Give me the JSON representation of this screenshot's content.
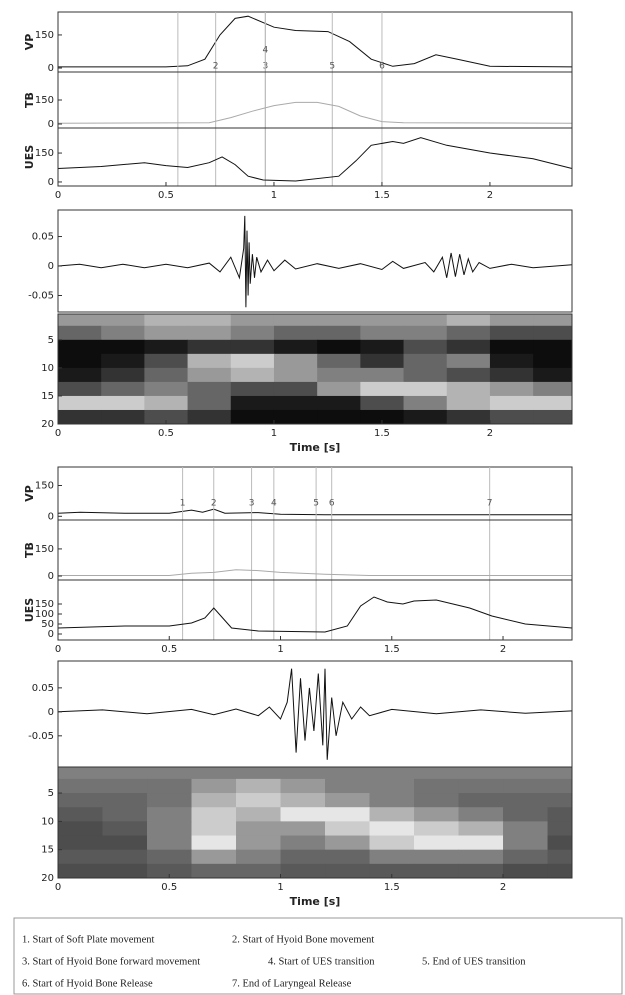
{
  "chart_data": [
    {
      "type": "line",
      "ylabel": "VP",
      "x": [
        0,
        0.5,
        0.6,
        0.68,
        0.75,
        0.82,
        0.88,
        1.0,
        1.1,
        1.25,
        1.35,
        1.45,
        1.55,
        1.65,
        1.75,
        1.85,
        2.0,
        2.38
      ],
      "values": [
        5,
        5,
        10,
        40,
        150,
        225,
        235,
        185,
        170,
        165,
        120,
        40,
        8,
        20,
        60,
        40,
        8,
        5
      ],
      "color": "#111111",
      "xlim": [
        0,
        2.38
      ],
      "ylim": [
        -18,
        254
      ],
      "yticks": [
        0,
        150
      ],
      "markers": {
        "x": [
          0.555,
          0.73,
          0.96,
          0.96,
          1.27,
          1.5
        ],
        "labels": [
          null,
          "2",
          "3",
          "4",
          "5",
          "6"
        ]
      }
    },
    {
      "type": "line",
      "ylabel": "TB",
      "x": [
        0,
        0.7,
        0.8,
        0.9,
        1.0,
        1.1,
        1.2,
        1.3,
        1.4,
        1.5,
        1.6,
        2.38
      ],
      "values": [
        5,
        8,
        40,
        80,
        115,
        135,
        135,
        110,
        50,
        15,
        8,
        5
      ],
      "color": "#aaaaaa",
      "xlim": [
        0,
        2.38
      ],
      "ylim": [
        -25,
        325
      ],
      "yticks": [
        0,
        150
      ]
    },
    {
      "type": "line",
      "ylabel": "UES",
      "x": [
        0,
        0.2,
        0.4,
        0.5,
        0.6,
        0.7,
        0.76,
        0.82,
        0.88,
        0.95,
        1.1,
        1.3,
        1.38,
        1.45,
        1.55,
        1.6,
        1.68,
        1.8,
        2.0,
        2.2,
        2.38
      ],
      "values": [
        70,
        80,
        100,
        85,
        75,
        100,
        130,
        90,
        30,
        10,
        5,
        30,
        110,
        190,
        210,
        200,
        230,
        190,
        150,
        120,
        70
      ],
      "color": "#111111",
      "xlim": [
        0,
        2.38
      ],
      "ylim": [
        -21,
        280
      ],
      "yticks": [
        0,
        150
      ],
      "xticks": [
        0,
        0.5,
        1,
        1.5,
        2
      ]
    },
    {
      "type": "line",
      "x": [
        0,
        0.1,
        0.2,
        0.3,
        0.4,
        0.5,
        0.6,
        0.7,
        0.75,
        0.8,
        0.84,
        0.86,
        0.865,
        0.87,
        0.875,
        0.88,
        0.885,
        0.89,
        0.9,
        0.91,
        0.92,
        0.94,
        0.97,
        1.0,
        1.05,
        1.1,
        1.2,
        1.3,
        1.4,
        1.5,
        1.55,
        1.6,
        1.7,
        1.74,
        1.78,
        1.8,
        1.82,
        1.84,
        1.86,
        1.88,
        1.9,
        1.92,
        1.95,
        2.0,
        2.1,
        2.2,
        2.38
      ],
      "values": [
        0,
        0.003,
        -0.003,
        0.003,
        -0.003,
        0.003,
        -0.003,
        0.005,
        -0.01,
        0.015,
        -0.02,
        0.03,
        0.085,
        -0.07,
        0.06,
        -0.05,
        0.04,
        -0.03,
        0.02,
        -0.02,
        0.015,
        -0.01,
        0.01,
        -0.008,
        0.01,
        -0.005,
        0.004,
        -0.004,
        0.004,
        -0.006,
        0.008,
        -0.004,
        0.006,
        -0.01,
        0.015,
        -0.02,
        0.022,
        -0.018,
        0.02,
        -0.015,
        0.012,
        -0.01,
        0.006,
        -0.004,
        0.003,
        -0.003,
        0.002
      ],
      "color": "#111111",
      "xlim": [
        0,
        2.38
      ],
      "ylim": [
        -0.078,
        0.095
      ],
      "yticks": [
        -0.05,
        0,
        0.05
      ]
    },
    {
      "type": "heatmap",
      "xlabel": "Time [s]",
      "colormap": "gray",
      "y_inverted": true,
      "xbins": [
        0,
        0.2,
        0.4,
        0.6,
        0.8,
        1.0,
        1.2,
        1.4,
        1.6,
        1.8,
        2.0,
        2.2,
        2.38
      ],
      "ybins": [
        0.4,
        2.5,
        5,
        7.5,
        10,
        12.5,
        15,
        17.5,
        20
      ],
      "values": [
        [
          0.6,
          0.6,
          0.7,
          0.7,
          0.6,
          0.6,
          0.6,
          0.6,
          0.6,
          0.7,
          0.6,
          0.6
        ],
        [
          0.4,
          0.5,
          0.6,
          0.6,
          0.5,
          0.4,
          0.4,
          0.5,
          0.5,
          0.4,
          0.3,
          0.3
        ],
        [
          0.05,
          0.05,
          0.1,
          0.2,
          0.2,
          0.1,
          0.05,
          0.1,
          0.3,
          0.2,
          0.05,
          0.05
        ],
        [
          0.05,
          0.1,
          0.3,
          0.7,
          0.8,
          0.6,
          0.4,
          0.2,
          0.4,
          0.5,
          0.1,
          0.05
        ],
        [
          0.1,
          0.2,
          0.4,
          0.6,
          0.7,
          0.6,
          0.5,
          0.5,
          0.4,
          0.3,
          0.2,
          0.1
        ],
        [
          0.3,
          0.4,
          0.5,
          0.4,
          0.3,
          0.3,
          0.6,
          0.8,
          0.8,
          0.7,
          0.6,
          0.5
        ],
        [
          0.8,
          0.8,
          0.7,
          0.4,
          0.1,
          0.1,
          0.1,
          0.3,
          0.5,
          0.7,
          0.8,
          0.8
        ],
        [
          0.2,
          0.2,
          0.3,
          0.2,
          0.05,
          0.05,
          0.05,
          0.05,
          0.1,
          0.2,
          0.3,
          0.3
        ]
      ],
      "xlim": [
        0,
        2.38
      ],
      "ylim": [
        0.4,
        20
      ],
      "yticks": [
        5,
        10,
        15,
        20
      ],
      "xticks": [
        0,
        0.5,
        1,
        1.5,
        2
      ]
    },
    {
      "type": "line",
      "ylabel": "VP",
      "x": [
        0,
        0.1,
        0.3,
        0.5,
        0.6,
        0.65,
        0.7,
        0.75,
        0.9,
        1.0,
        1.2,
        2.31
      ],
      "values": [
        15,
        20,
        15,
        15,
        30,
        20,
        35,
        15,
        18,
        10,
        8,
        8
      ],
      "color": "#111111",
      "xlim": [
        0,
        2.31
      ],
      "ylim": [
        -18,
        240
      ],
      "yticks": [
        0,
        150
      ],
      "markers": {
        "x": [
          0.56,
          0.7,
          0.87,
          0.97,
          1.16,
          1.23,
          1.94
        ],
        "labels": [
          "1",
          "2",
          "3",
          "4",
          "5",
          "6",
          "7"
        ]
      }
    },
    {
      "type": "line",
      "ylabel": "TB",
      "x": [
        0,
        0.5,
        0.6,
        0.7,
        0.8,
        0.9,
        1.0,
        1.2,
        1.4,
        2.31
      ],
      "values": [
        3,
        3,
        15,
        20,
        35,
        30,
        20,
        10,
        3,
        3
      ],
      "color": "#aaaaaa",
      "xlim": [
        0,
        2.31
      ],
      "ylim": [
        -22,
        310
      ],
      "yticks": [
        0,
        150
      ]
    },
    {
      "type": "line",
      "ylabel": "UES",
      "x": [
        0,
        0.3,
        0.5,
        0.6,
        0.66,
        0.7,
        0.74,
        0.78,
        0.9,
        1.2,
        1.3,
        1.36,
        1.42,
        1.48,
        1.55,
        1.6,
        1.7,
        1.85,
        1.95,
        2.1,
        2.31
      ],
      "values": [
        30,
        40,
        40,
        55,
        80,
        130,
        80,
        30,
        15,
        10,
        40,
        140,
        185,
        160,
        150,
        165,
        170,
        130,
        90,
        50,
        30
      ],
      "color": "#111111",
      "xlim": [
        0,
        2.31
      ],
      "ylim": [
        -30,
        270
      ],
      "yticks": [
        0,
        50,
        100,
        150
      ],
      "xticks": [
        0,
        0.5,
        1,
        1.5,
        2
      ]
    },
    {
      "type": "line",
      "x": [
        0,
        0.2,
        0.4,
        0.6,
        0.7,
        0.8,
        0.9,
        0.95,
        1.0,
        1.03,
        1.05,
        1.07,
        1.09,
        1.11,
        1.13,
        1.15,
        1.17,
        1.19,
        1.2,
        1.21,
        1.23,
        1.25,
        1.28,
        1.32,
        1.36,
        1.4,
        1.5,
        1.7,
        1.9,
        2.1,
        2.31
      ],
      "values": [
        0,
        0.004,
        -0.004,
        0.005,
        -0.006,
        0.006,
        -0.008,
        0.01,
        -0.015,
        0.02,
        0.09,
        -0.085,
        0.07,
        -0.06,
        0.05,
        -0.04,
        0.08,
        -0.07,
        0.09,
        -0.1,
        0.03,
        -0.05,
        0.02,
        -0.015,
        0.01,
        -0.008,
        0.005,
        -0.004,
        0.004,
        -0.003,
        0.002
      ],
      "color": "#111111",
      "xlim": [
        0,
        2.31
      ],
      "ylim": [
        -0.115,
        0.106
      ],
      "yticks": [
        -0.05,
        0,
        0.05
      ]
    },
    {
      "type": "heatmap",
      "xlabel": "Time [s]",
      "colormap": "gray",
      "y_inverted": true,
      "xbins": [
        0,
        0.2,
        0.4,
        0.6,
        0.8,
        1.0,
        1.2,
        1.4,
        1.6,
        1.8,
        2.0,
        2.2,
        2.31
      ],
      "ybins": [
        0.4,
        2.5,
        5,
        7.5,
        10,
        12.5,
        15,
        17.5,
        20
      ],
      "values": [
        [
          0.5,
          0.5,
          0.5,
          0.5,
          0.5,
          0.5,
          0.5,
          0.5,
          0.5,
          0.5,
          0.5,
          0.5
        ],
        [
          0.45,
          0.45,
          0.45,
          0.6,
          0.7,
          0.6,
          0.5,
          0.5,
          0.45,
          0.45,
          0.45,
          0.45
        ],
        [
          0.4,
          0.4,
          0.45,
          0.7,
          0.8,
          0.7,
          0.6,
          0.5,
          0.45,
          0.4,
          0.4,
          0.4
        ],
        [
          0.35,
          0.4,
          0.5,
          0.8,
          0.7,
          0.9,
          0.9,
          0.7,
          0.6,
          0.5,
          0.4,
          0.35
        ],
        [
          0.3,
          0.35,
          0.5,
          0.8,
          0.6,
          0.6,
          0.8,
          0.9,
          0.8,
          0.7,
          0.5,
          0.35
        ],
        [
          0.3,
          0.3,
          0.5,
          0.9,
          0.6,
          0.5,
          0.6,
          0.8,
          0.9,
          0.9,
          0.5,
          0.3
        ],
        [
          0.35,
          0.35,
          0.4,
          0.6,
          0.5,
          0.4,
          0.4,
          0.5,
          0.5,
          0.5,
          0.4,
          0.35
        ],
        [
          0.3,
          0.3,
          0.35,
          0.4,
          0.4,
          0.35,
          0.35,
          0.35,
          0.35,
          0.35,
          0.3,
          0.3
        ]
      ],
      "xlim": [
        0,
        2.31
      ],
      "ylim": [
        0.4,
        20
      ],
      "yticks": [
        5,
        10,
        15,
        20
      ],
      "xticks": [
        0,
        0.5,
        1,
        1.5,
        2
      ]
    }
  ],
  "notes": [
    [
      "1. Start of Soft Plate movement",
      "2. Start of Hyoid Bone movement"
    ],
    [
      "3. Start of Hyoid Bone forward movement",
      "4. Start of UES transition",
      "5. End of UES transition"
    ],
    [
      "6. Start of Hyoid Bone Release",
      "7. End of Laryngeal Release"
    ]
  ]
}
